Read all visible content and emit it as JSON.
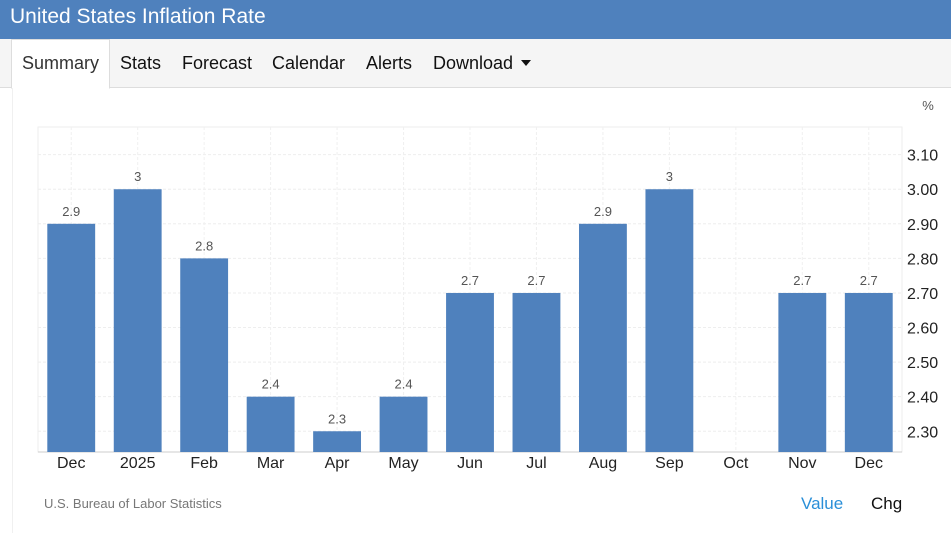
{
  "header": {
    "title": "United States Inflation Rate"
  },
  "tabs": [
    {
      "label": "Summary",
      "active": true
    },
    {
      "label": "Stats"
    },
    {
      "label": "Forecast"
    },
    {
      "label": "Calendar"
    },
    {
      "label": "Alerts"
    },
    {
      "label": "Download",
      "has_dropdown": true
    }
  ],
  "chart_data": {
    "type": "bar",
    "unit": "%",
    "categories": [
      "Dec",
      "2025",
      "Feb",
      "Mar",
      "Apr",
      "May",
      "Jun",
      "Jul",
      "Aug",
      "Sep",
      "Oct",
      "Nov",
      "Dec"
    ],
    "values": [
      2.9,
      3.0,
      2.8,
      2.4,
      2.3,
      2.4,
      2.7,
      2.7,
      2.9,
      3.0,
      null,
      2.7,
      2.7
    ],
    "data_labels": [
      "2.9",
      "3",
      "2.8",
      "2.4",
      "2.3",
      "2.4",
      "2.7",
      "2.7",
      "2.9",
      "3",
      "",
      "2.7",
      "2.7"
    ],
    "y_ticks": [
      "3.10",
      "3.00",
      "2.90",
      "2.80",
      "2.70",
      "2.60",
      "2.50",
      "2.40",
      "2.30"
    ],
    "ylim": [
      2.24,
      3.18
    ],
    "y_axis_side": "right",
    "grid": true,
    "bar_color": "#4f81bd",
    "source": "U.S. Bureau of Labor Statistics"
  },
  "footer": {
    "value_label": "Value",
    "chg_label": "Chg",
    "active_color": "#2a8fd8"
  }
}
